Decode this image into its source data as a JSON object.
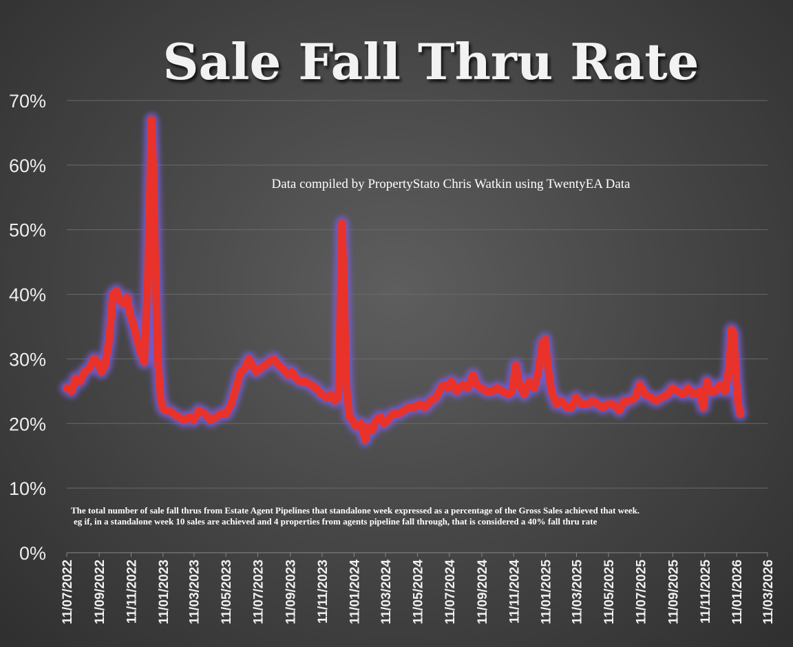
{
  "chart_data": {
    "type": "line",
    "title": "Sale Fall Thru Rate",
    "subtitle": "Data compiled by PropertyStato Chris Watkin using TwentyEA Data",
    "notes": [
      "The total number of sale fall thrus from Estate Agent Pipelines that standalone week expressed as a percentage of the Gross Sales achieved that week.",
      "eg if, in a standalone week 10 sales are achieved and 4 properties from agents pipeline fall through, that is considered a 40%  fall thru rate"
    ],
    "xlabel": "",
    "ylabel": "",
    "ylim": [
      0,
      70
    ],
    "xlim": [
      "2022-07-11",
      "2026-03-11"
    ],
    "grid": true,
    "legend": "none",
    "line_color": "#e8322a",
    "glow_color": "#7b5bd6",
    "yticks": [
      "0%",
      "10%",
      "20%",
      "30%",
      "40%",
      "50%",
      "60%",
      "70%"
    ],
    "xticks": [
      "11/07/2022",
      "11/09/2022",
      "11/11/2022",
      "11/01/2023",
      "11/03/2023",
      "11/05/2023",
      "11/07/2023",
      "11/09/2023",
      "11/11/2023",
      "11/01/2024",
      "11/03/2024",
      "11/05/2024",
      "11/07/2024",
      "11/09/2024",
      "11/11/2024",
      "11/01/2025",
      "11/03/2025",
      "11/05/2025",
      "11/07/2025",
      "11/09/2025",
      "11/11/2025",
      "11/01/2026",
      "11/03/2026"
    ],
    "series": [
      {
        "x": [
          "2022-07-11",
          "2022-07-20",
          "2022-07-28",
          "2022-08-05",
          "2022-08-14",
          "2022-08-23",
          "2022-09-01",
          "2022-09-08",
          "2022-09-15",
          "2022-09-22",
          "2022-09-30",
          "2022-10-07",
          "2022-10-14",
          "2022-10-21",
          "2022-10-28",
          "2022-11-03",
          "2022-11-10",
          "2022-11-15",
          "2022-11-22",
          "2022-11-29",
          "2022-12-06",
          "2022-12-13",
          "2022-12-20",
          "2022-12-23",
          "2022-12-27",
          "2023-01-01",
          "2023-01-06",
          "2023-01-10",
          "2023-01-15",
          "2023-01-23",
          "2023-01-31",
          "2023-02-10",
          "2023-02-20",
          "2023-03-01",
          "2023-03-10",
          "2023-03-20",
          "2023-04-01",
          "2023-04-12",
          "2023-04-22",
          "2023-05-01",
          "2023-05-11",
          "2023-05-21",
          "2023-06-01",
          "2023-06-08",
          "2023-06-16",
          "2023-06-24",
          "2023-07-01",
          "2023-07-08",
          "2023-07-15",
          "2023-07-24",
          "2023-08-01",
          "2023-08-10",
          "2023-08-20",
          "2023-08-28",
          "2023-09-07",
          "2023-09-14",
          "2023-09-22",
          "2023-10-01",
          "2023-10-10",
          "2023-10-20",
          "2023-10-30",
          "2023-11-10",
          "2023-11-20",
          "2023-11-28",
          "2023-12-05",
          "2023-12-12",
          "2023-12-19",
          "2023-12-23",
          "2023-12-27",
          "2024-01-02",
          "2024-01-08",
          "2024-01-15",
          "2024-01-24",
          "2024-02-01",
          "2024-02-08",
          "2024-02-15",
          "2024-02-22",
          "2024-03-01",
          "2024-03-08",
          "2024-03-15",
          "2024-03-25",
          "2024-04-05",
          "2024-04-15",
          "2024-04-25",
          "2024-05-05",
          "2024-05-15",
          "2024-05-25",
          "2024-06-05",
          "2024-06-15",
          "2024-06-25",
          "2024-07-01",
          "2024-07-08",
          "2024-07-15",
          "2024-07-25",
          "2024-08-05",
          "2024-08-15",
          "2024-08-25",
          "2024-09-01",
          "2024-09-10",
          "2024-09-20",
          "2024-10-01",
          "2024-10-10",
          "2024-10-20",
          "2024-11-01",
          "2024-11-08",
          "2024-11-15",
          "2024-11-22",
          "2024-12-01",
          "2024-12-10",
          "2024-12-20",
          "2024-12-28",
          "2025-01-05",
          "2025-01-10",
          "2025-01-15",
          "2025-01-22",
          "2025-02-01",
          "2025-02-10",
          "2025-02-20",
          "2025-03-01",
          "2025-03-10",
          "2025-03-20",
          "2025-04-01",
          "2025-04-10",
          "2025-04-20",
          "2025-05-01",
          "2025-05-10",
          "2025-05-20",
          "2025-06-01",
          "2025-06-10",
          "2025-06-20",
          "2025-07-01",
          "2025-07-10",
          "2025-07-20",
          "2025-08-01",
          "2025-08-10",
          "2025-08-20",
          "2025-09-01",
          "2025-09-10",
          "2025-09-20",
          "2025-10-01",
          "2025-10-10",
          "2025-10-20",
          "2025-11-01",
          "2025-11-08",
          "2025-11-15",
          "2025-11-22",
          "2025-12-01",
          "2025-12-10",
          "2025-12-20",
          "2025-12-28",
          "2026-01-01",
          "2026-01-05",
          "2026-01-10",
          "2026-01-14",
          "2026-01-18"
        ],
        "y": [
          25.5,
          25,
          27,
          26.5,
          28,
          28.5,
          30,
          29.5,
          28,
          29,
          33,
          40,
          40.5,
          39,
          38.5,
          39.5,
          36.5,
          35.5,
          33,
          31,
          29.5,
          43,
          67,
          60,
          45,
          30,
          24,
          22.5,
          22,
          22,
          21.5,
          21,
          20.5,
          21,
          20.5,
          22,
          21.5,
          20.5,
          21,
          21.5,
          21.5,
          23,
          26,
          28,
          28.5,
          30,
          29,
          28,
          28.5,
          29,
          29.5,
          30,
          29,
          28.5,
          27.5,
          28,
          27,
          26.5,
          26.5,
          26,
          25.5,
          24.5,
          24,
          24.5,
          23.5,
          24,
          51,
          40,
          26,
          21,
          20.5,
          19.5,
          20,
          17.5,
          19.5,
          19,
          20.5,
          21,
          20,
          20.5,
          21.5,
          21.5,
          22,
          22.5,
          22.5,
          23,
          22.5,
          23.5,
          24,
          25.5,
          26,
          25.5,
          26.5,
          25,
          26,
          25.5,
          27.5,
          26,
          25.5,
          25,
          25,
          25.5,
          25,
          24.5,
          25,
          29,
          26,
          24.5,
          26.5,
          25.5,
          28,
          32.5,
          33,
          29,
          25,
          23,
          23.5,
          22.5,
          22.5,
          24,
          23,
          23,
          23.5,
          23,
          22.5,
          23,
          23,
          22,
          23.5,
          23.5,
          24,
          26,
          24.5,
          24,
          23.5,
          24,
          24.5,
          25.5,
          25,
          24.5,
          25.5,
          24.5,
          25,
          22.5,
          26.5,
          25,
          25,
          26,
          25,
          29,
          34.5,
          34,
          27,
          23,
          21.5
        ]
      }
    ]
  }
}
